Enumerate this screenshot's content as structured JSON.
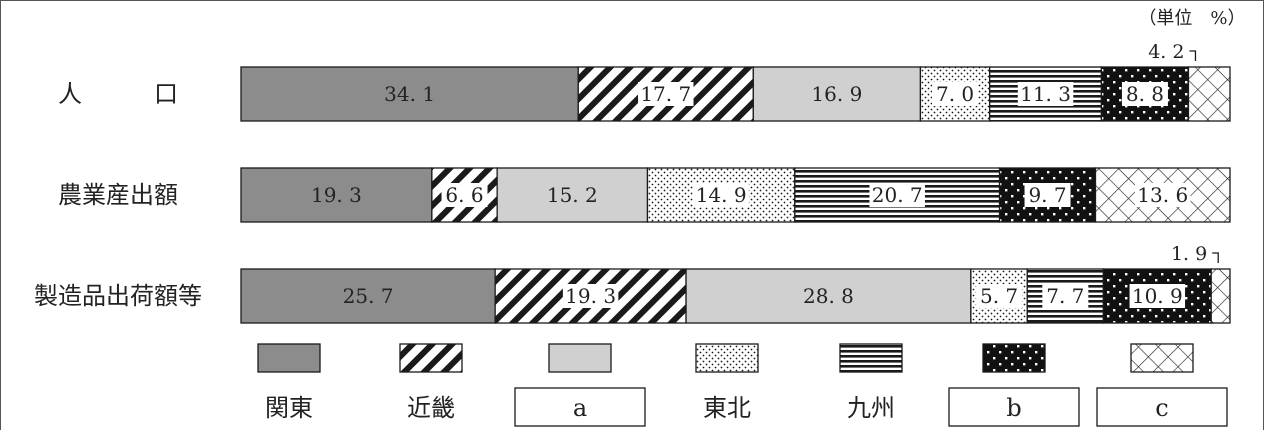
{
  "chart_data": {
    "type": "bar",
    "orientation": "horizontal",
    "stacked": true,
    "unit_note": "（単位　%）",
    "categories": [
      "人　　　口",
      "農業産出額",
      "製造品出荷額等"
    ],
    "legend_position": "bottom",
    "series": [
      {
        "name": "関東",
        "values": [
          34.1,
          19.3,
          25.7
        ],
        "labels": [
          "34. 1",
          "19. 3",
          "25. 7"
        ],
        "pattern": "solid-dark"
      },
      {
        "name": "近畿",
        "values": [
          17.7,
          6.6,
          19.3
        ],
        "labels": [
          "17. 7",
          "6. 6",
          "19. 3"
        ],
        "pattern": "diagonal"
      },
      {
        "name": "a",
        "boxed": true,
        "values": [
          16.9,
          15.2,
          28.8
        ],
        "labels": [
          "16. 9",
          "15. 2",
          "28. 8"
        ],
        "pattern": "solid-light"
      },
      {
        "name": "東北",
        "values": [
          7.0,
          14.9,
          5.7
        ],
        "labels": [
          "7. 0",
          "14. 9",
          "5. 7"
        ],
        "pattern": "dots"
      },
      {
        "name": "九州",
        "values": [
          11.3,
          20.7,
          7.7
        ],
        "labels": [
          "11. 3",
          "20. 7",
          "7. 7"
        ],
        "pattern": "horizontal"
      },
      {
        "name": "b",
        "boxed": true,
        "values": [
          8.8,
          9.7,
          10.9
        ],
        "labels": [
          "8. 8",
          "9. 7",
          "10. 9"
        ],
        "pattern": "black-dots"
      },
      {
        "name": "c",
        "boxed": true,
        "values": [
          4.2,
          13.6,
          1.9
        ],
        "labels": [
          "4. 2",
          "13. 6",
          "1. 9"
        ],
        "pattern": "crosshatch",
        "callout": [
          true,
          false,
          true
        ]
      }
    ],
    "colors": {
      "dark": "#8c8c8c",
      "light": "#d0d0d0",
      "ink": "#1a1a1a"
    }
  }
}
